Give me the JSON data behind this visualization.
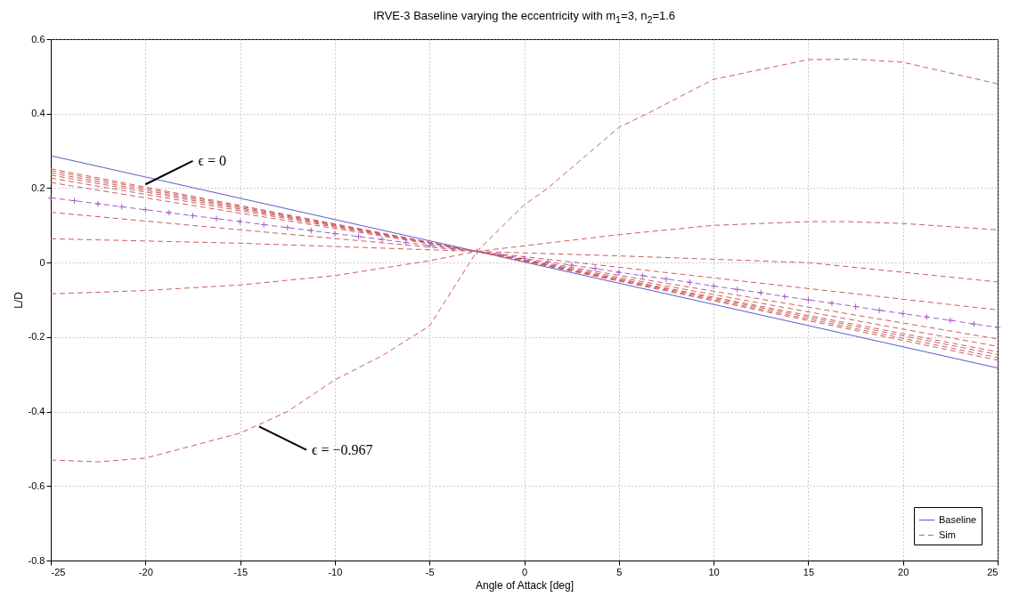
{
  "chart_data": {
    "type": "line",
    "title": "IRVE-3 Baseline varying the eccentricity with m$_{1}$=3, n$_{2}$=1.6",
    "xlabel": "Angle of Attack [deg]",
    "ylabel": "L/D",
    "xlim": [
      -25,
      25
    ],
    "xticks": [
      -25,
      -20,
      -15,
      -10,
      -5,
      0,
      5,
      10,
      15,
      20,
      25
    ],
    "ylim": [
      -0.8,
      0.6
    ],
    "yticks": [
      -0.8,
      -0.6,
      -0.4,
      -0.2,
      0,
      0.2,
      0.4,
      0.6
    ],
    "grid": true,
    "legend": "bottom right",
    "annotations": [
      {
        "text": "ϵ = 0",
        "x": -20,
        "y": 0.21
      },
      {
        "text": "ϵ = −0.967",
        "x": -14,
        "y": -0.44
      }
    ],
    "series": [
      {
        "name": "Baseline",
        "color": "#5b5bd0",
        "line_style": "solid",
        "x": [
          -25,
          -2.5,
          25
        ],
        "values": [
          0.287,
          0.03,
          -0.283
        ]
      },
      {
        "name": "Sim",
        "color": "#cd5c5c",
        "line_style": "dashed",
        "x": [
          -25,
          -2.5,
          25
        ],
        "values": [
          0.252,
          0.03,
          -0.262
        ]
      },
      {
        "color": "#cd5c5c",
        "line_style": "dashed",
        "x": [
          -25,
          -2.5,
          25
        ],
        "values": [
          0.247,
          0.03,
          -0.255
        ]
      },
      {
        "color": "#cd5c5c",
        "line_style": "dashed",
        "x": [
          -25,
          -2.5,
          25
        ],
        "values": [
          0.241,
          0.03,
          -0.247
        ]
      },
      {
        "color": "#cd5c5c",
        "line_style": "dashed",
        "x": [
          -25,
          -2.5,
          25
        ],
        "values": [
          0.235,
          0.03,
          -0.24
        ]
      },
      {
        "color": "#cd5c5c",
        "line_style": "dashed",
        "x": [
          -25,
          -2.5,
          25
        ],
        "values": [
          0.227,
          0.03,
          -0.225
        ]
      },
      {
        "color": "#cd5c5c",
        "line_style": "dashed",
        "x": [
          -25,
          -2.5,
          25
        ],
        "values": [
          0.215,
          0.03,
          -0.205
        ]
      },
      {
        "color": "#a05cc8",
        "line_style": "dashed",
        "marker": "cross",
        "x": [
          -25,
          -23.75,
          -22.5,
          -21.25,
          -20,
          -18.75,
          -17.5,
          -16.25,
          -15,
          -13.75,
          -12.5,
          -11.25,
          -10,
          -8.75,
          -7.5,
          -6.25,
          -5,
          -3.75,
          -2.5,
          -1.25,
          0,
          1.25,
          2.5,
          3.75,
          5,
          6.25,
          7.5,
          8.75,
          10,
          11.25,
          12.5,
          13.75,
          15,
          16.25,
          17.5,
          18.75,
          20,
          21.25,
          22.5,
          23.75,
          25
        ],
        "values": [
          0.174,
          0.166,
          0.158,
          0.15,
          0.142,
          0.134,
          0.126,
          0.118,
          0.11,
          0.102,
          0.094,
          0.086,
          0.078,
          0.07,
          0.062,
          0.054,
          0.046,
          0.038,
          0.03,
          0.021,
          0.011,
          0.002,
          -0.007,
          -0.016,
          -0.026,
          -0.035,
          -0.044,
          -0.053,
          -0.063,
          -0.072,
          -0.081,
          -0.091,
          -0.1,
          -0.109,
          -0.118,
          -0.128,
          -0.137,
          -0.146,
          -0.155,
          -0.165,
          -0.174
        ]
      },
      {
        "color": "#cd5c5c",
        "line_style": "dashed",
        "x": [
          -25,
          -15,
          -2.5,
          10,
          25
        ],
        "values": [
          0.135,
          0.088,
          0.03,
          -0.041,
          -0.127
        ]
      },
      {
        "color": "#cd5c5c",
        "line_style": "dashed",
        "x": [
          -25,
          -15,
          -2.5,
          5,
          15,
          25
        ],
        "values": [
          0.064,
          0.052,
          0.03,
          0.018,
          0.0,
          -0.052
        ]
      },
      {
        "color": "#cd5c5c",
        "line_style": "dashed",
        "x": [
          -25,
          -20,
          -15,
          -10,
          -5,
          -2.5,
          0,
          5,
          10,
          15,
          17,
          20,
          25
        ],
        "values": [
          -0.084,
          -0.075,
          -0.06,
          -0.035,
          0.005,
          0.03,
          0.045,
          0.075,
          0.1,
          0.11,
          0.11,
          0.105,
          0.088
        ]
      },
      {
        "color": "#cd5c5c",
        "line_style": "dashed",
        "x": [
          -25,
          -22.5,
          -20,
          -15,
          -12.5,
          -10,
          -7.5,
          -5,
          -2.5,
          0,
          1.25,
          5,
          6.5,
          10,
          15,
          17.5,
          20,
          25
        ],
        "values": [
          -0.53,
          -0.535,
          -0.525,
          -0.458,
          -0.4,
          -0.315,
          -0.25,
          -0.17,
          0.03,
          0.155,
          0.2,
          0.363,
          0.4,
          0.492,
          0.545,
          0.546,
          0.538,
          0.48
        ]
      }
    ]
  }
}
